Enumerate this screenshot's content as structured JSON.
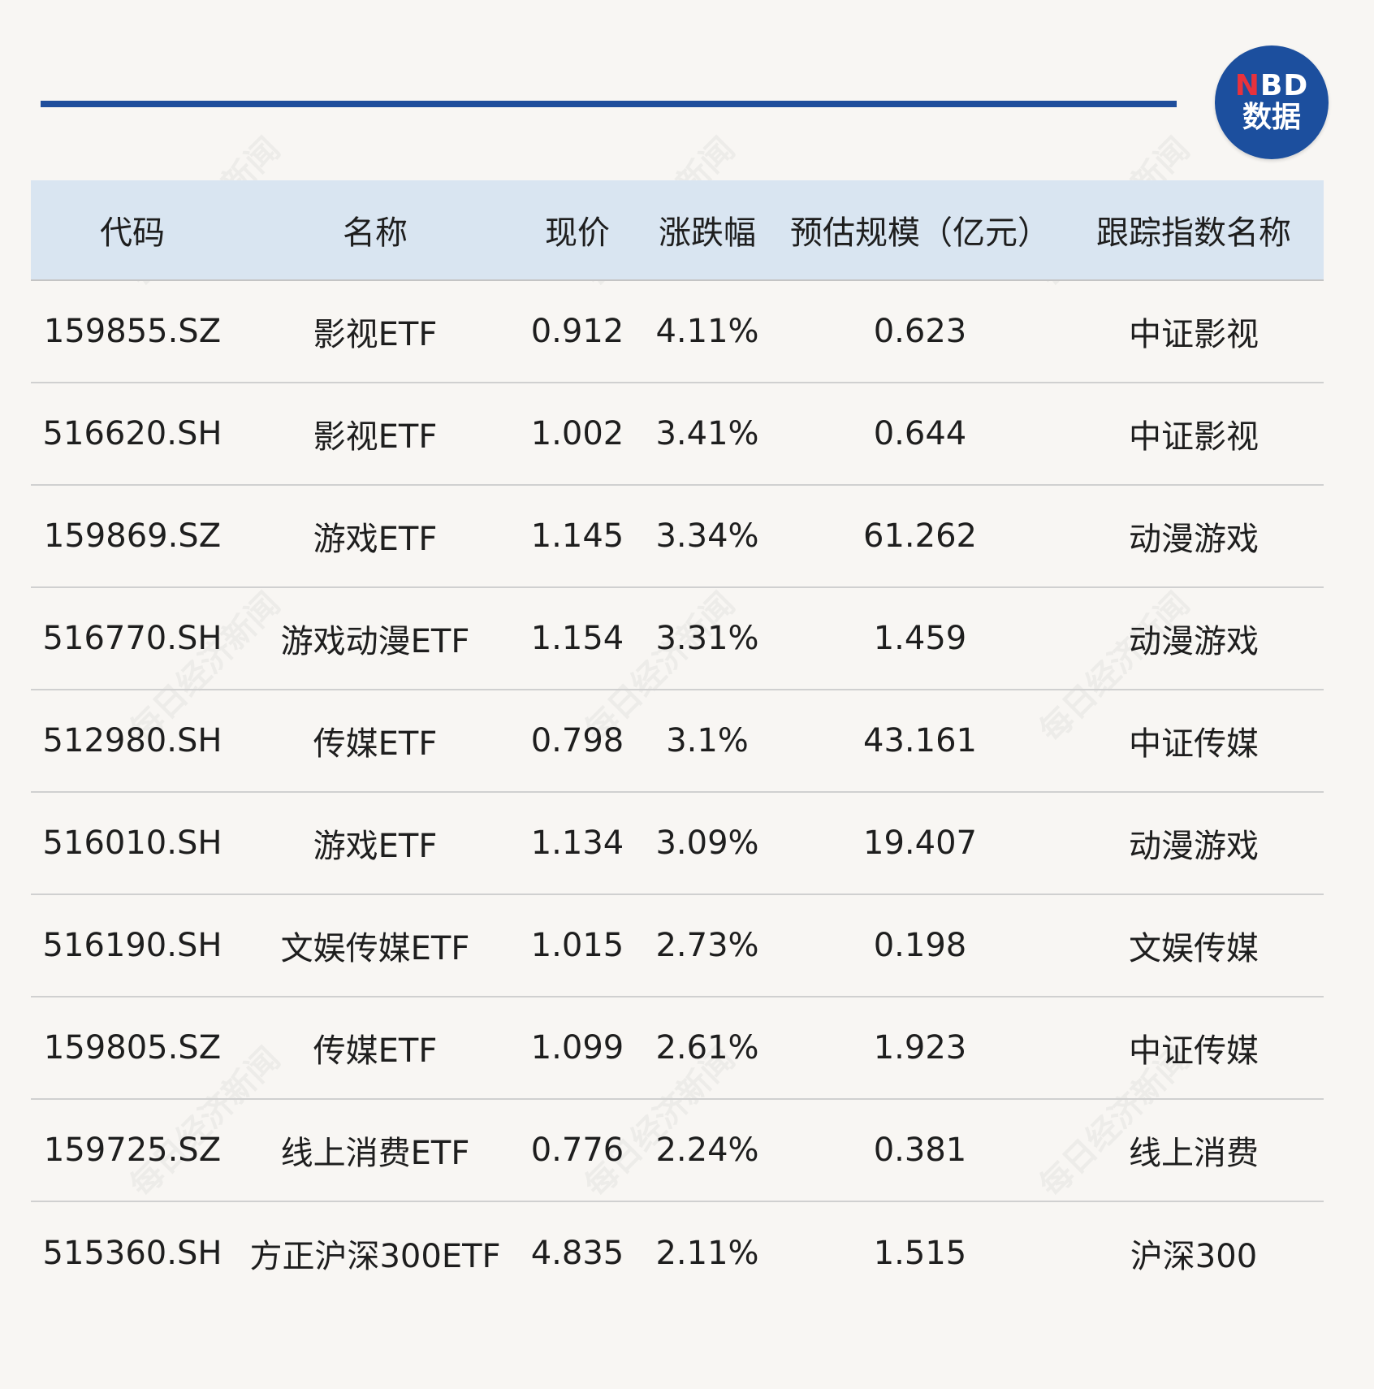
{
  "logo": {
    "letter_n": "N",
    "letters_bd": "BD",
    "line2": "数据",
    "colors": {
      "bg": "#1c4f9e",
      "n": "#e8323c"
    }
  },
  "watermark_text": "每日经济新闻",
  "colors": {
    "rule": "#1f4e9c",
    "header_bg": "#d9e5f1",
    "page_bg": "#f8f6f3"
  },
  "table": {
    "headers": [
      "代码",
      "名称",
      "现价",
      "涨跌幅",
      "预估规模（亿元）",
      "跟踪指数名称"
    ],
    "rows": [
      [
        "159855.SZ",
        "影视ETF",
        "0.912",
        "4.11%",
        "0.623",
        "中证影视"
      ],
      [
        "516620.SH",
        "影视ETF",
        "1.002",
        "3.41%",
        "0.644",
        "中证影视"
      ],
      [
        "159869.SZ",
        "游戏ETF",
        "1.145",
        "3.34%",
        "61.262",
        "动漫游戏"
      ],
      [
        "516770.SH",
        "游戏动漫ETF",
        "1.154",
        "3.31%",
        "1.459",
        "动漫游戏"
      ],
      [
        "512980.SH",
        "传媒ETF",
        "0.798",
        "3.1%",
        "43.161",
        "中证传媒"
      ],
      [
        "516010.SH",
        "游戏ETF",
        "1.134",
        "3.09%",
        "19.407",
        "动漫游戏"
      ],
      [
        "516190.SH",
        "文娱传媒ETF",
        "1.015",
        "2.73%",
        "0.198",
        "文娱传媒"
      ],
      [
        "159805.SZ",
        "传媒ETF",
        "1.099",
        "2.61%",
        "1.923",
        "中证传媒"
      ],
      [
        "159725.SZ",
        "线上消费ETF",
        "0.776",
        "2.24%",
        "0.381",
        "线上消费"
      ],
      [
        "515360.SH",
        "方正沪深300ETF",
        "4.835",
        "2.11%",
        "1.515",
        "沪深300"
      ]
    ]
  }
}
